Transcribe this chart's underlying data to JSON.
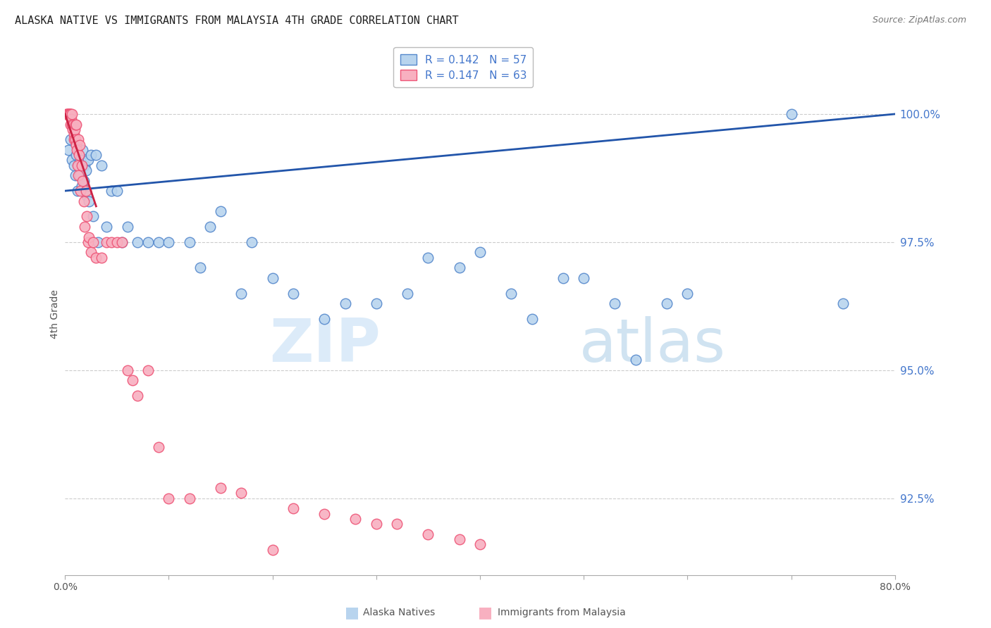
{
  "title": "ALASKA NATIVE VS IMMIGRANTS FROM MALAYSIA 4TH GRADE CORRELATION CHART",
  "source": "Source: ZipAtlas.com",
  "ylabel": "4th Grade",
  "xlim": [
    0.0,
    80.0
  ],
  "ylim": [
    91.0,
    101.2
  ],
  "yticks": [
    92.5,
    95.0,
    97.5,
    100.0
  ],
  "grid_color": "#cccccc",
  "background_color": "#ffffff",
  "alaska_color": "#b8d4ee",
  "malaysia_color": "#f8b0c0",
  "alaska_edge_color": "#5588cc",
  "malaysia_edge_color": "#ee5577",
  "trend_alaska_color": "#2255aa",
  "trend_malaysia_color": "#cc2244",
  "legend_R_alaska": "R = 0.142",
  "legend_N_alaska": "N = 57",
  "legend_R_malaysia": "R = 0.147",
  "legend_N_malaysia": "N = 63",
  "legend_label_alaska": "Alaska Natives",
  "legend_label_malaysia": "Immigrants from Malaysia",
  "watermark_zip": "ZIP",
  "watermark_atlas": "atlas",
  "alaska_x": [
    0.3,
    0.5,
    0.7,
    0.9,
    1.0,
    1.1,
    1.2,
    1.3,
    1.4,
    1.5,
    1.6,
    1.7,
    1.8,
    1.9,
    2.0,
    2.1,
    2.2,
    2.3,
    2.5,
    2.7,
    3.0,
    3.2,
    3.5,
    4.0,
    4.5,
    5.0,
    5.5,
    6.0,
    7.0,
    8.0,
    9.0,
    10.0,
    12.0,
    13.0,
    14.0,
    15.0,
    17.0,
    18.0,
    20.0,
    22.0,
    25.0,
    27.0,
    30.0,
    33.0,
    35.0,
    38.0,
    40.0,
    43.0,
    45.0,
    48.0,
    50.0,
    53.0,
    55.0,
    58.0,
    60.0,
    70.0,
    75.0
  ],
  "alaska_y": [
    99.3,
    99.5,
    99.1,
    99.0,
    98.8,
    99.2,
    98.5,
    99.0,
    98.8,
    99.1,
    98.6,
    99.3,
    98.7,
    99.0,
    98.9,
    98.4,
    99.1,
    98.3,
    99.2,
    98.0,
    99.2,
    97.5,
    99.0,
    97.8,
    98.5,
    98.5,
    97.5,
    97.8,
    97.5,
    97.5,
    97.5,
    97.5,
    97.5,
    97.0,
    97.8,
    98.1,
    96.5,
    97.5,
    96.8,
    96.5,
    96.0,
    96.3,
    96.3,
    96.5,
    97.2,
    97.0,
    97.3,
    96.5,
    96.0,
    96.8,
    96.8,
    96.3,
    95.2,
    96.3,
    96.5,
    100.0,
    96.3
  ],
  "malaysia_x": [
    0.15,
    0.2,
    0.25,
    0.3,
    0.35,
    0.4,
    0.45,
    0.5,
    0.5,
    0.55,
    0.6,
    0.65,
    0.7,
    0.75,
    0.8,
    0.85,
    0.9,
    0.95,
    1.0,
    1.0,
    1.05,
    1.1,
    1.15,
    1.2,
    1.25,
    1.3,
    1.35,
    1.4,
    1.5,
    1.6,
    1.7,
    1.8,
    1.9,
    2.0,
    2.1,
    2.2,
    2.3,
    2.5,
    2.7,
    3.0,
    3.5,
    4.0,
    4.5,
    5.0,
    5.5,
    6.0,
    6.5,
    7.0,
    8.0,
    9.0,
    10.0,
    12.0,
    15.0,
    17.0,
    20.0,
    22.0,
    25.0,
    28.0,
    30.0,
    32.0,
    35.0,
    38.0,
    40.0
  ],
  "malaysia_y": [
    100.0,
    100.0,
    100.0,
    100.0,
    100.0,
    100.0,
    100.0,
    100.0,
    99.8,
    100.0,
    99.9,
    100.0,
    99.8,
    99.7,
    99.8,
    99.6,
    99.5,
    99.7,
    99.5,
    99.8,
    99.8,
    99.4,
    99.3,
    99.0,
    99.5,
    98.8,
    99.2,
    99.4,
    98.5,
    99.0,
    98.7,
    98.3,
    97.8,
    98.5,
    98.0,
    97.5,
    97.6,
    97.3,
    97.5,
    97.2,
    97.2,
    97.5,
    97.5,
    97.5,
    97.5,
    95.0,
    94.8,
    94.5,
    95.0,
    93.5,
    92.5,
    92.5,
    92.7,
    92.6,
    91.5,
    92.3,
    92.2,
    92.1,
    92.0,
    92.0,
    91.8,
    91.7,
    91.6
  ],
  "alaska_trend_x": [
    0.0,
    80.0
  ],
  "alaska_trend_y": [
    98.5,
    100.0
  ],
  "malaysia_trend_x": [
    0.0,
    3.0
  ],
  "malaysia_trend_y": [
    100.0,
    98.2
  ]
}
